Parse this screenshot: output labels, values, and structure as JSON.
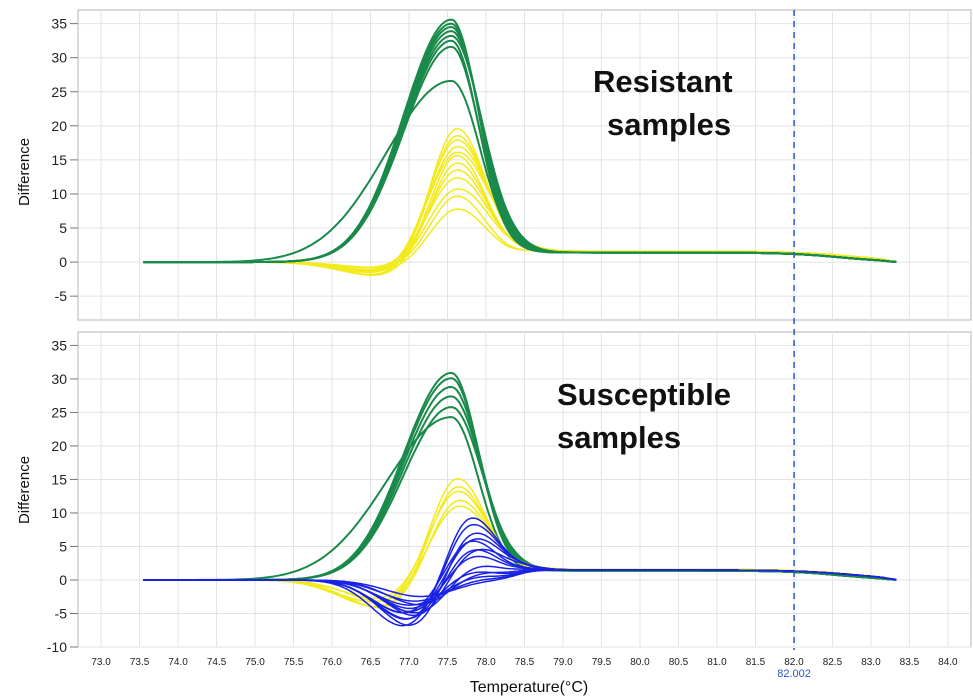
{
  "colors": {
    "resistant": "#1a8a4a",
    "susceptible": "#f2ea1a",
    "reference": "#1a22e6",
    "cursor": "#2a55d6",
    "grid": "#e3e3e3"
  },
  "chart_data": {
    "type": "line",
    "xlabel": "Temperature(°C)",
    "xlim": [
      72.7,
      84.3
    ],
    "x_ticks": [
      "73.0",
      "73.5",
      "74.0",
      "74.5",
      "75.0",
      "75.5",
      "76.0",
      "76.5",
      "77.0",
      "77.5",
      "78.0",
      "78.5",
      "79.0",
      "79.5",
      "80.0",
      "80.5",
      "81.0",
      "81.5",
      "82.0",
      "82.5",
      "83.0",
      "83.5",
      "84.0"
    ],
    "cursor": {
      "x": 82.002,
      "label": "82.002"
    },
    "panels": [
      {
        "annotation": [
          "Resistant",
          "samples"
        ],
        "ylabel": "Difference",
        "ylim": [
          -8.5,
          37
        ],
        "y_ticks": [
          "-5",
          "0",
          "5",
          "10",
          "15",
          "20",
          "25",
          "30",
          "35"
        ],
        "groups": [
          {
            "color": "susceptible",
            "curves": [
              {
                "peak": 19.8,
                "dip": -1.6
              },
              {
                "peak": 18.9,
                "dip": -2.0
              },
              {
                "peak": 18.2,
                "dip": -1.4
              },
              {
                "peak": 17.5,
                "dip": -2.3
              },
              {
                "peak": 16.6,
                "dip": -1.8
              },
              {
                "peak": 15.8,
                "dip": -1.2
              },
              {
                "peak": 14.9,
                "dip": -2.1
              },
              {
                "peak": 13.8,
                "dip": -1.5
              },
              {
                "peak": 12.6,
                "dip": -1.0
              },
              {
                "peak": 11.2,
                "dip": -1.7
              },
              {
                "peak": 9.8,
                "dip": -0.9
              },
              {
                "peak": 8.0,
                "dip": -1.3
              }
            ]
          },
          {
            "color": "resistant",
            "curves": [
              {
                "peak": 35.6
              },
              {
                "peak": 35.0
              },
              {
                "peak": 34.5
              },
              {
                "peak": 33.9
              },
              {
                "peak": 33.2
              },
              {
                "peak": 32.5
              },
              {
                "peak": 31.6
              },
              {
                "peak": 26.6
              }
            ]
          }
        ]
      },
      {
        "annotation": [
          "Susceptible",
          "samples"
        ],
        "ylabel": "Difference",
        "ylim": [
          -10,
          37
        ],
        "y_ticks": [
          "-10",
          "-5",
          "0",
          "5",
          "10",
          "15",
          "20",
          "25",
          "30",
          "35"
        ],
        "groups": [
          {
            "color": "resistant",
            "curves": [
              {
                "peak": 30.9
              },
              {
                "peak": 30.1
              },
              {
                "peak": 28.8
              },
              {
                "peak": 27.4
              },
              {
                "peak": 25.8
              },
              {
                "peak": 24.3
              }
            ]
          },
          {
            "color": "susceptible",
            "curves": [
              {
                "peak": 15.6,
                "dip": -3.4
              },
              {
                "peak": 14.6,
                "dip": -4.2
              },
              {
                "peak": 13.8,
                "dip": -3.0
              },
              {
                "peak": 12.9,
                "dip": -4.6
              },
              {
                "peak": 12.0,
                "dip": -3.8
              }
            ]
          },
          {
            "color": "reference",
            "curves": [
              {
                "peak": 10.1,
                "dip": -7.0
              },
              {
                "peak": 9.4,
                "dip": -6.2
              },
              {
                "peak": 8.8,
                "dip": -7.4
              },
              {
                "peak": 8.0,
                "dip": -5.6
              },
              {
                "peak": 7.2,
                "dip": -6.6
              },
              {
                "peak": 6.4,
                "dip": -5.0
              },
              {
                "peak": 5.5,
                "dip": -6.0
              },
              {
                "peak": 4.6,
                "dip": -4.6
              },
              {
                "peak": 3.5,
                "dip": -5.4
              },
              {
                "peak": 2.4,
                "dip": -4.2
              },
              {
                "peak": 1.6,
                "dip": -4.9
              },
              {
                "peak": 0.9,
                "dip": -3.8
              },
              {
                "peak": 0.5,
                "dip": -3.2
              },
              {
                "peak": 0.2,
                "dip": -2.5
              }
            ]
          }
        ]
      }
    ]
  }
}
